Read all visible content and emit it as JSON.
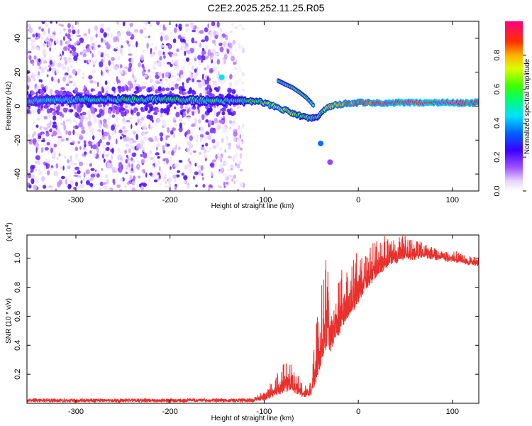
{
  "title": "C2E2.2025.252.11.25.R05",
  "chart_data": [
    {
      "type": "heatmap",
      "name": "spectrogram",
      "title": "C2E2.2025.252.11.25.R05",
      "xlabel": "Height of straight line (km)",
      "ylabel": "Frequency (Hz)",
      "xlim": [
        -352,
        128
      ],
      "ylim": [
        -50,
        50
      ],
      "xticks": [
        -300,
        -200,
        -100,
        0,
        100
      ],
      "yticks": [
        -40,
        -20,
        0,
        20,
        40
      ],
      "xtick_labels": [
        "-300",
        "-200",
        "-100",
        "0",
        "100"
      ],
      "ytick_labels": [
        "-40",
        "-20",
        "0",
        "20",
        "40"
      ],
      "colorbar": {
        "label": "Normalized spectral amplitude",
        "range": [
          0.0,
          1.0
        ],
        "ticks": [
          0.0,
          0.2,
          0.4,
          0.6,
          0.8
        ],
        "tick_labels": [
          "0.0",
          "0.2",
          "0.4",
          "0.6",
          "0.8"
        ]
      },
      "noise_region_x": [
        -352,
        -128
      ],
      "main_trace": {
        "x": [
          -352,
          -300,
          -250,
          -200,
          -150,
          -125,
          -110,
          -100,
          -90,
          -80,
          -70,
          -60,
          -50,
          -45,
          -40,
          -35,
          -30,
          -20,
          -10,
          0,
          20,
          50,
          80,
          100,
          128
        ],
        "y": [
          3,
          4,
          4,
          4,
          3,
          3,
          3,
          2,
          0,
          -2,
          -4,
          -6,
          -7,
          -7,
          -4,
          -2,
          0,
          1,
          2,
          2,
          2,
          2,
          2,
          2,
          2
        ],
        "amplitude": [
          0.45,
          0.5,
          0.55,
          0.55,
          0.5,
          0.55,
          0.6,
          0.65,
          0.7,
          0.7,
          0.65,
          0.6,
          0.6,
          0.55,
          0.6,
          0.7,
          0.75,
          0.8,
          0.85,
          0.85,
          0.9,
          0.95,
          0.95,
          0.95,
          0.9
        ]
      },
      "secondary_trace": {
        "x": [
          -85,
          -78,
          -70,
          -62,
          -55,
          -50,
          -47
        ],
        "y": [
          15,
          13,
          11,
          8,
          5,
          2,
          0
        ],
        "amplitude": [
          0.5,
          0.55,
          0.6,
          0.6,
          0.55,
          0.5,
          0.5
        ]
      },
      "isolated_blobs": [
        {
          "x": -145,
          "y": 17,
          "amplitude": 0.45
        },
        {
          "x": -40,
          "y": -22,
          "amplitude": 0.35
        },
        {
          "x": -30,
          "y": -33,
          "amplitude": 0.15
        }
      ]
    },
    {
      "type": "line",
      "name": "snr",
      "xlabel": "Height of straight line (km)",
      "ylabel": "SNR (10 * v/v)",
      "y_scale_label": "(x10",
      "y_scale_exponent": "4",
      "xlim": [
        -352,
        128
      ],
      "ylim": [
        0,
        11600
      ],
      "xticks": [
        -300,
        -200,
        -100,
        0,
        100
      ],
      "xtick_labels": [
        "-300",
        "-200",
        "-100",
        "0",
        "100"
      ],
      "yticks": [
        2000,
        4000,
        6000,
        8000,
        10000
      ],
      "ytick_labels": [
        "0.2",
        "0.4",
        "0.6",
        "0.8",
        "1.0"
      ],
      "color": "#e8302c",
      "envelope": {
        "x": [
          -352,
          -200,
          -150,
          -110,
          -100,
          -95,
          -90,
          -80,
          -75,
          -70,
          -60,
          -55,
          -50,
          -45,
          -40,
          -36,
          -33,
          -30,
          -25,
          -20,
          -15,
          -10,
          -5,
          0,
          10,
          20,
          30,
          40,
          50,
          60,
          70,
          80,
          90,
          100,
          110,
          120,
          128
        ],
        "base": [
          200,
          200,
          200,
          200,
          300,
          400,
          500,
          800,
          900,
          900,
          500,
          400,
          600,
          1500,
          2500,
          3500,
          4000,
          3500,
          4200,
          4800,
          5500,
          6000,
          6500,
          7000,
          8000,
          8800,
          9400,
          9700,
          9900,
          10000,
          10100,
          10000,
          9900,
          9800,
          9700,
          9600,
          9500
        ],
        "peak": [
          400,
          450,
          500,
          600,
          800,
          1200,
          1800,
          2800,
          3000,
          2600,
          1500,
          1200,
          2000,
          5500,
          9000,
          10800,
          11200,
          8500,
          9000,
          9200,
          9500,
          9800,
          10200,
          10400,
          10800,
          11200,
          11500,
          11600,
          11500,
          11300,
          11000,
          10800,
          10600,
          10500,
          10300,
          10200,
          10100
        ]
      },
      "noise_amplitude": 250
    }
  ]
}
